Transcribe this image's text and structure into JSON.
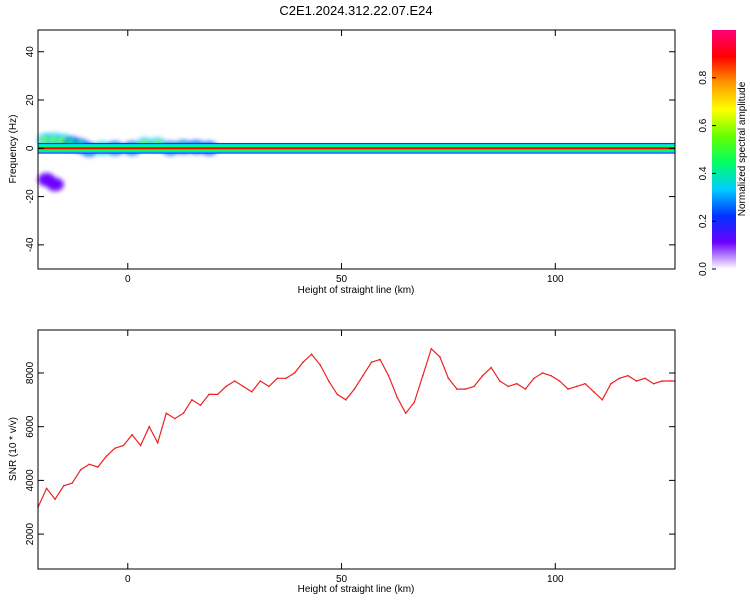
{
  "figure_title": "C2E1.2024.312.22.07.E24",
  "chart_data": [
    {
      "type": "heatmap",
      "title": "C2E1.2024.312.22.07.E24",
      "xlabel": "Height of straight line (km)",
      "ylabel": "Frequency (Hz)",
      "xlim": [
        -21,
        128
      ],
      "ylim": [
        -50,
        49
      ],
      "x_ticks": [
        0,
        50,
        100
      ],
      "y_ticks": [
        40,
        20,
        0,
        -20,
        -40
      ],
      "grid": false,
      "band": {
        "y": 0,
        "half_width": 1.8,
        "x_start": -21,
        "x_end": 128
      },
      "blobs": [
        {
          "x": -19,
          "y": 3.5,
          "amp": 0.5
        },
        {
          "x": -17,
          "y": 3.5,
          "amp": 0.6
        },
        {
          "x": -15,
          "y": 3,
          "amp": 0.55
        },
        {
          "x": -13,
          "y": 2,
          "amp": 0.45
        },
        {
          "x": -11,
          "y": 1,
          "amp": 0.4
        },
        {
          "x": -9,
          "y": -0.5,
          "amp": 0.35
        },
        {
          "x": -6,
          "y": 0,
          "amp": 0.5
        },
        {
          "x": -3,
          "y": 0,
          "amp": 0.45
        },
        {
          "x": 1,
          "y": 0,
          "amp": 0.4
        },
        {
          "x": 4,
          "y": 1.5,
          "amp": 0.55
        },
        {
          "x": 7,
          "y": 1.5,
          "amp": 0.6
        },
        {
          "x": 10,
          "y": 0,
          "amp": 0.45
        },
        {
          "x": 13,
          "y": 0.5,
          "amp": 0.4
        },
        {
          "x": 16,
          "y": 0.5,
          "amp": 0.35
        },
        {
          "x": 19,
          "y": 0,
          "amp": 0.3
        },
        {
          "x": -19,
          "y": -13,
          "amp": 0.12
        },
        {
          "x": -17,
          "y": -15,
          "amp": 0.1
        }
      ],
      "colorbar": {
        "label": "Normalized spectral amplitude",
        "ticks": [
          0.0,
          0.2,
          0.4,
          0.6,
          0.8
        ],
        "tick_labels": [
          "0.0",
          "0.2",
          "0.4",
          "0.6",
          "0.8"
        ],
        "colormap": [
          "#ffffff",
          "#6a00ff",
          "#0033ff",
          "#00ccff",
          "#00ff66",
          "#66ff00",
          "#ffff00",
          "#ff9900",
          "#ff0000",
          "#ff0077"
        ]
      }
    },
    {
      "type": "line",
      "xlabel": "Height of straight line (km)",
      "ylabel": "SNR (10 * v/v)",
      "xlim": [
        -21,
        128
      ],
      "ylim": [
        700,
        9600
      ],
      "x_ticks": [
        0,
        50,
        100
      ],
      "y_ticks": [
        2000,
        4000,
        6000,
        8000
      ],
      "grid": false,
      "series": [
        {
          "color": "#ee2222",
          "points": [
            [
              -21,
              3000
            ],
            [
              -19,
              3700
            ],
            [
              -17,
              3300
            ],
            [
              -15,
              3800
            ],
            [
              -13,
              3900
            ],
            [
              -11,
              4400
            ],
            [
              -9,
              4600
            ],
            [
              -7,
              4500
            ],
            [
              -5,
              4900
            ],
            [
              -3,
              5200
            ],
            [
              -1,
              5300
            ],
            [
              1,
              5700
            ],
            [
              3,
              5300
            ],
            [
              5,
              6000
            ],
            [
              7,
              5400
            ],
            [
              9,
              6500
            ],
            [
              11,
              6300
            ],
            [
              13,
              6500
            ],
            [
              15,
              7000
            ],
            [
              17,
              6800
            ],
            [
              19,
              7200
            ],
            [
              21,
              7200
            ],
            [
              23,
              7500
            ],
            [
              25,
              7700
            ],
            [
              27,
              7500
            ],
            [
              29,
              7300
            ],
            [
              31,
              7700
            ],
            [
              33,
              7500
            ],
            [
              35,
              7800
            ],
            [
              37,
              7800
            ],
            [
              39,
              8000
            ],
            [
              41,
              8400
            ],
            [
              43,
              8700
            ],
            [
              45,
              8300
            ],
            [
              47,
              7700
            ],
            [
              49,
              7200
            ],
            [
              51,
              7000
            ],
            [
              53,
              7400
            ],
            [
              55,
              7900
            ],
            [
              57,
              8400
            ],
            [
              59,
              8500
            ],
            [
              61,
              7900
            ],
            [
              63,
              7100
            ],
            [
              65,
              6500
            ],
            [
              67,
              6900
            ],
            [
              69,
              7900
            ],
            [
              71,
              8900
            ],
            [
              73,
              8600
            ],
            [
              75,
              7800
            ],
            [
              77,
              7400
            ],
            [
              79,
              7400
            ],
            [
              81,
              7500
            ],
            [
              83,
              7900
            ],
            [
              85,
              8200
            ],
            [
              87,
              7700
            ],
            [
              89,
              7500
            ],
            [
              91,
              7600
            ],
            [
              93,
              7400
            ],
            [
              95,
              7800
            ],
            [
              97,
              8000
            ],
            [
              99,
              7900
            ],
            [
              101,
              7700
            ],
            [
              103,
              7400
            ],
            [
              105,
              7500
            ],
            [
              107,
              7600
            ],
            [
              109,
              7300
            ],
            [
              111,
              7000
            ],
            [
              113,
              7600
            ],
            [
              115,
              7800
            ],
            [
              117,
              7900
            ],
            [
              119,
              7700
            ],
            [
              121,
              7800
            ],
            [
              123,
              7600
            ],
            [
              125,
              7700
            ],
            [
              127,
              7700
            ],
            [
              128,
              7700
            ]
          ]
        }
      ]
    }
  ]
}
